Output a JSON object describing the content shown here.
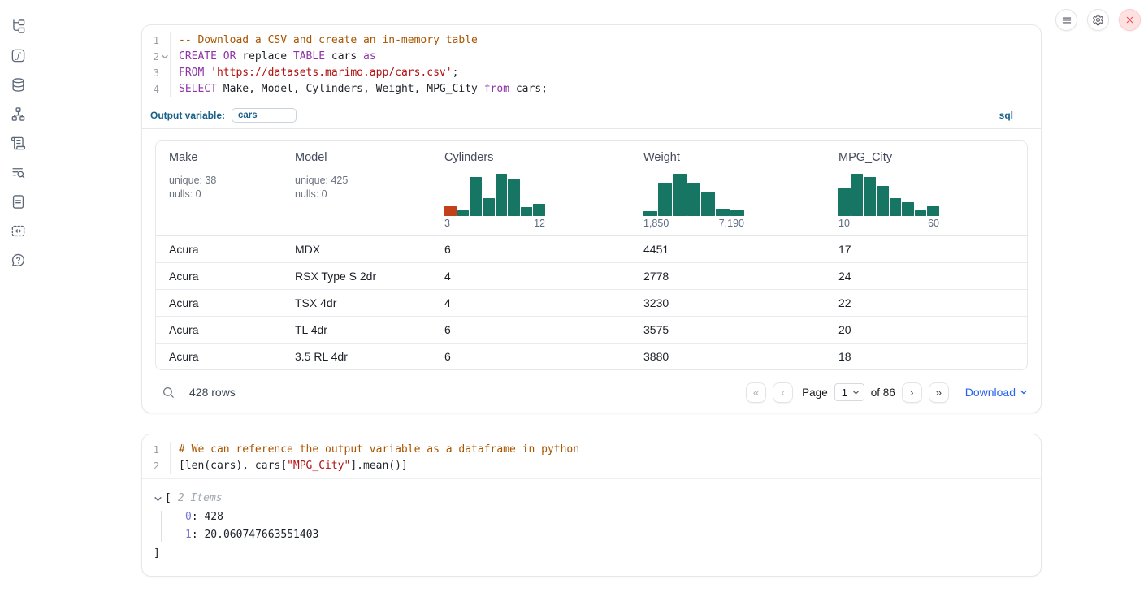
{
  "colors": {
    "accent_blue": "#176087",
    "link_blue": "#2563eb",
    "hist_teal": "#177663",
    "hist_orange": "#c2411b",
    "code_keyword": "#8f35a8",
    "code_string": "#b01111",
    "code_comment": "#aa5500",
    "close_red": "#ef4444"
  },
  "sidebar": {
    "icons": [
      "file-tree",
      "function",
      "database",
      "hierarchy",
      "scroll",
      "log-search",
      "document",
      "snippets",
      "help"
    ]
  },
  "topbar": {
    "buttons": [
      "menu",
      "settings",
      "close"
    ]
  },
  "sql_cell": {
    "language_badge": "sql",
    "output_variable_label": "Output variable:",
    "output_variable_value": "cars",
    "lines": [
      {
        "num": "1",
        "tokens": [
          [
            "c",
            "-- Download a CSV and create an in-memory table"
          ]
        ]
      },
      {
        "num": "2",
        "fold": true,
        "tokens": [
          [
            "k",
            "CREATE"
          ],
          [
            "p",
            " "
          ],
          [
            "k",
            "OR"
          ],
          [
            "p",
            " replace "
          ],
          [
            "k",
            "TABLE"
          ],
          [
            "p",
            " cars "
          ],
          [
            "k",
            "as"
          ]
        ]
      },
      {
        "num": "3",
        "tokens": [
          [
            "k",
            "FROM"
          ],
          [
            "p",
            " "
          ],
          [
            "s",
            "'https://datasets.marimo.app/cars.csv'"
          ],
          [
            "p",
            ";"
          ]
        ]
      },
      {
        "num": "4",
        "tokens": [
          [
            "k",
            "SELECT"
          ],
          [
            "p",
            " Make, Model, Cylinders, Weight, MPG_City "
          ],
          [
            "k",
            "from"
          ],
          [
            "p",
            " cars;"
          ]
        ]
      }
    ]
  },
  "table": {
    "columns": [
      {
        "label": "Make",
        "type": "text",
        "stats": [
          "unique: 38",
          "nulls: 0"
        ]
      },
      {
        "label": "Model",
        "type": "text",
        "stats": [
          "unique: 425",
          "nulls: 0"
        ]
      },
      {
        "label": "Cylinders",
        "type": "hist",
        "chart": 0
      },
      {
        "label": "Weight",
        "type": "hist",
        "chart": 1
      },
      {
        "label": "MPG_City",
        "type": "hist",
        "chart": 2
      }
    ],
    "rows": [
      [
        "Acura",
        "MDX",
        "6",
        "4451",
        "17"
      ],
      [
        "Acura",
        "RSX Type S 2dr",
        "4",
        "2778",
        "24"
      ],
      [
        "Acura",
        "TSX 4dr",
        "4",
        "3230",
        "22"
      ],
      [
        "Acura",
        "TL 4dr",
        "6",
        "3575",
        "20"
      ],
      [
        "Acura",
        "3.5 RL 4dr",
        "6",
        "3880",
        "18"
      ]
    ],
    "footer": {
      "row_count": "428 rows",
      "first": "«",
      "prev": "‹",
      "next": "›",
      "last": "»",
      "page_label": "Page",
      "page_value": "1",
      "page_total": "of 86",
      "download_label": "Download"
    }
  },
  "chart_data": [
    {
      "type": "bar",
      "title": "Cylinders column mini-histogram",
      "x_min_label": "3",
      "x_max_label": "12",
      "ylim": [
        0,
        1
      ],
      "rel_heights": [
        0.23,
        0.13,
        0.92,
        0.42,
        1.0,
        0.87,
        0.21,
        0.29
      ],
      "bar_colors": [
        "#c2411b",
        "#177663",
        "#177663",
        "#177663",
        "#177663",
        "#177663",
        "#177663",
        "#177663"
      ]
    },
    {
      "type": "bar",
      "title": "Weight column mini-histogram",
      "x_min_label": "1,850",
      "x_max_label": "7,190",
      "ylim": [
        0,
        1
      ],
      "rel_heights": [
        0.12,
        0.78,
        1.0,
        0.78,
        0.56,
        0.18,
        0.13
      ],
      "bar_colors": [
        "#177663",
        "#177663",
        "#177663",
        "#177663",
        "#177663",
        "#177663",
        "#177663"
      ]
    },
    {
      "type": "bar",
      "title": "MPG_City column mini-histogram",
      "x_min_label": "10",
      "x_max_label": "60",
      "ylim": [
        0,
        1
      ],
      "rel_heights": [
        0.66,
        1.0,
        0.93,
        0.72,
        0.42,
        0.32,
        0.14,
        0.24
      ],
      "bar_colors": [
        "#177663",
        "#177663",
        "#177663",
        "#177663",
        "#177663",
        "#177663",
        "#177663",
        "#177663"
      ]
    }
  ],
  "python_cell": {
    "lines": [
      {
        "num": "1",
        "tokens": [
          [
            "c",
            "# We can reference the output variable as a dataframe in python"
          ]
        ]
      },
      {
        "num": "2",
        "tokens": [
          [
            "p",
            "[len(cars), cars["
          ],
          [
            "s",
            "\"MPG_City\""
          ],
          [
            "p",
            "].mean()]"
          ]
        ]
      }
    ]
  },
  "tree_output": {
    "open_bracket": "[",
    "items_label": "2 Items",
    "entries": [
      {
        "key": "0",
        "sep": ": ",
        "value": "428"
      },
      {
        "key": "1",
        "sep": ": ",
        "value": "20.060747663551403"
      }
    ],
    "close_bracket": "]"
  }
}
